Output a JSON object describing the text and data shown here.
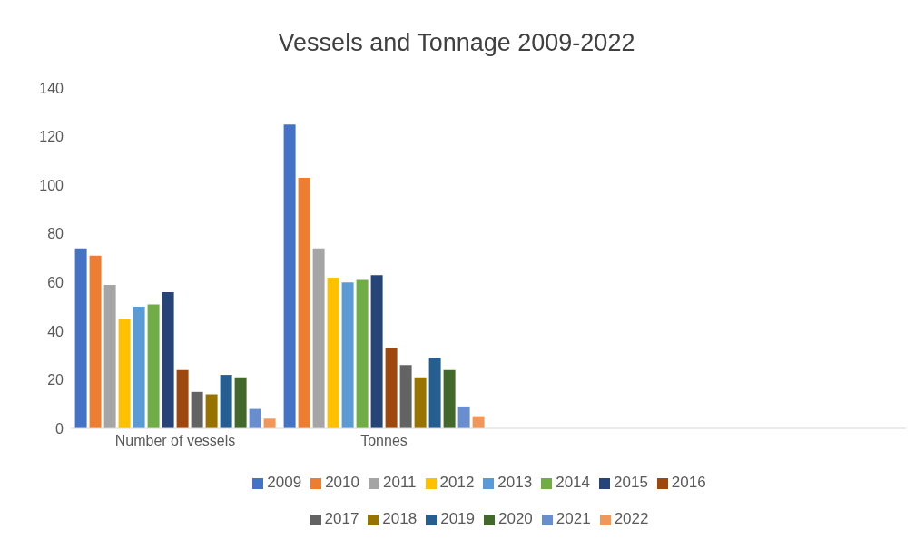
{
  "chart_data": {
    "type": "bar",
    "title": "Vessels and Tonnage 2009-2022",
    "categories": [
      "Number of vessels",
      "Tonnes",
      null,
      null
    ],
    "series": [
      {
        "name": "2009",
        "color": "#4472c4",
        "values": [
          74,
          125,
          null,
          null
        ]
      },
      {
        "name": "2010",
        "color": "#ed7d31",
        "values": [
          71,
          103,
          null,
          null
        ]
      },
      {
        "name": "2011",
        "color": "#a5a5a5",
        "values": [
          59,
          74,
          null,
          null
        ]
      },
      {
        "name": "2012",
        "color": "#ffc000",
        "values": [
          45,
          62,
          null,
          null
        ]
      },
      {
        "name": "2013",
        "color": "#5b9bd5",
        "values": [
          50,
          60,
          null,
          null
        ]
      },
      {
        "name": "2014",
        "color": "#70ad47",
        "values": [
          51,
          61,
          null,
          null
        ]
      },
      {
        "name": "2015",
        "color": "#264478",
        "values": [
          56,
          63,
          null,
          null
        ]
      },
      {
        "name": "2016",
        "color": "#9e480e",
        "values": [
          24,
          33,
          null,
          null
        ]
      },
      {
        "name": "2017",
        "color": "#636363",
        "values": [
          15,
          26,
          null,
          null
        ]
      },
      {
        "name": "2018",
        "color": "#997300",
        "values": [
          14,
          21,
          null,
          null
        ]
      },
      {
        "name": "2019",
        "color": "#255e91",
        "values": [
          22,
          29,
          null,
          null
        ]
      },
      {
        "name": "2020",
        "color": "#43682b",
        "values": [
          21,
          24,
          null,
          null
        ]
      },
      {
        "name": "2021",
        "color": "#698ed0",
        "values": [
          8,
          9,
          null,
          null
        ]
      },
      {
        "name": "2022",
        "color": "#f1975a",
        "values": [
          4,
          5,
          null,
          null
        ]
      }
    ],
    "ylim": [
      0,
      140
    ],
    "yticks": [
      0,
      20,
      40,
      60,
      80,
      100,
      120,
      140
    ],
    "grid": false,
    "legend": "bottom"
  }
}
